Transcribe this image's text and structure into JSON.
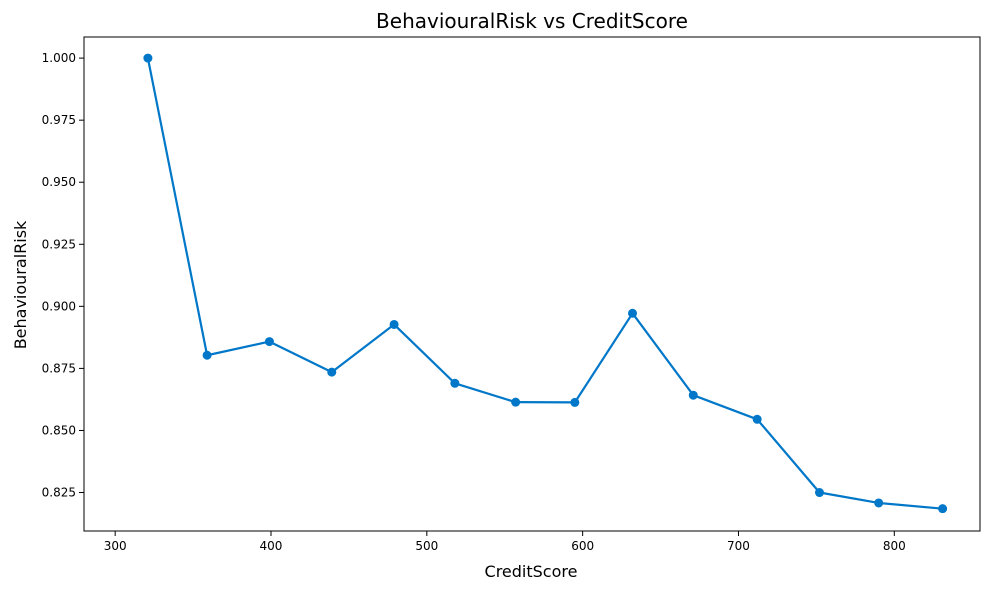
{
  "chart_data": {
    "type": "line",
    "title": "BehaviouralRisk vs CreditScore",
    "xlabel": "CreditScore",
    "ylabel": "BehaviouralRisk",
    "xlim": [
      280,
      855
    ],
    "ylim": [
      0.8095,
      1.0085
    ],
    "xticks": [
      300,
      400,
      500,
      600,
      700,
      800
    ],
    "yticks": [
      0.825,
      0.85,
      0.875,
      0.9,
      0.925,
      0.95,
      0.975,
      1.0
    ],
    "ytick_labels": [
      "0.825",
      "0.850",
      "0.875",
      "0.900",
      "0.925",
      "0.950",
      "0.975",
      "1.000"
    ],
    "grid": false,
    "series": [
      {
        "color": "#0077c8",
        "marker": "circle",
        "x": [
          321,
          359,
          399,
          439,
          479,
          518,
          557,
          595,
          632,
          671,
          712,
          752,
          790,
          831
        ],
        "y": [
          1.0,
          0.8803,
          0.8858,
          0.8735,
          0.8927,
          0.869,
          0.8614,
          0.8613,
          0.8972,
          0.8642,
          0.8545,
          0.825,
          0.8208,
          0.8185
        ]
      }
    ]
  }
}
